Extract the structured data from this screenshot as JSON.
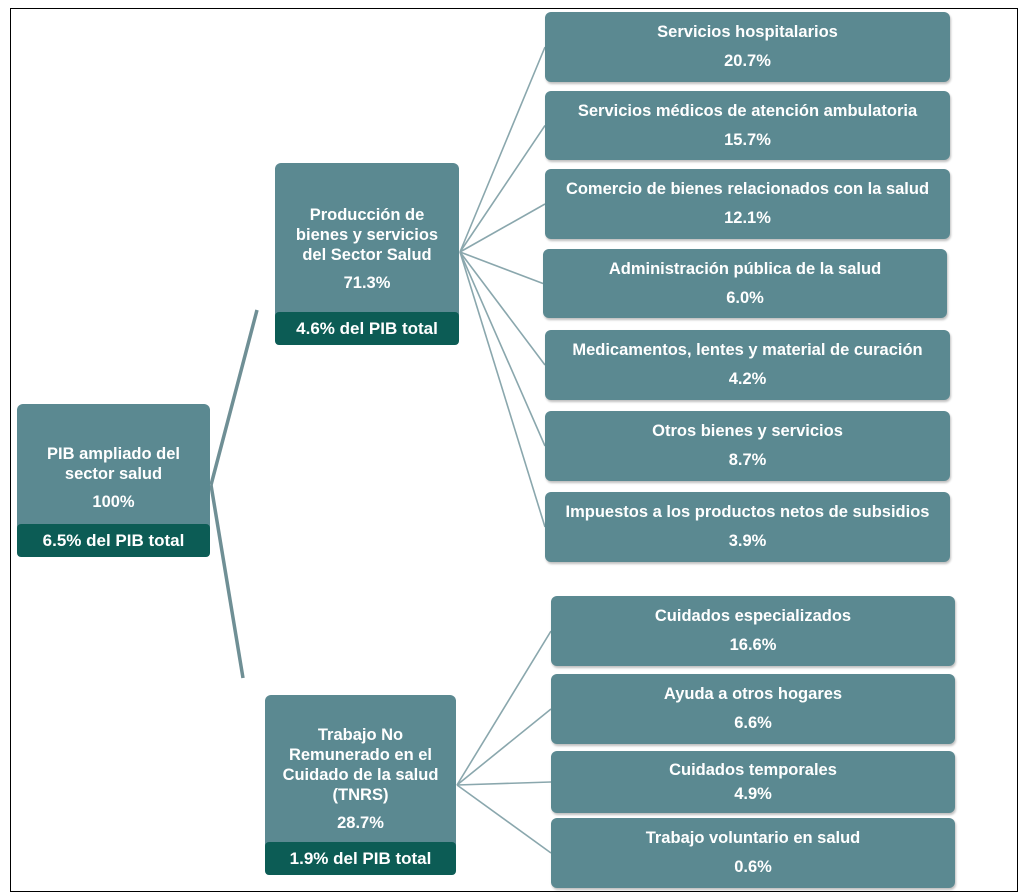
{
  "root": {
    "label": "PIB ampliado del sector salud",
    "share": "100%",
    "gdp": "6.5% del PIB total"
  },
  "branches": [
    {
      "label": "Producción de bienes y servicios del Sector Salud",
      "share": "71.3%",
      "gdp": "4.6% del PIB total",
      "items": [
        {
          "label": "Servicios hospitalarios",
          "share": "20.7%"
        },
        {
          "label": "Servicios médicos de atención ambulatoria",
          "share": "15.7%"
        },
        {
          "label": "Comercio de bienes relacionados con la salud",
          "share": "12.1%"
        },
        {
          "label": "Administración pública de la salud",
          "share": "6.0%"
        },
        {
          "label": "Medicamentos, lentes y material de curación",
          "share": "4.2%"
        },
        {
          "label": "Otros bienes y servicios",
          "share": "8.7%"
        },
        {
          "label": "Impuestos a los productos netos de subsidios",
          "share": "3.9%"
        }
      ]
    },
    {
      "label": "Trabajo No Remunerado en el Cuidado de la salud (TNRS)",
      "share": "28.7%",
      "gdp": "1.9% del PIB total",
      "items": [
        {
          "label": "Cuidados especializados",
          "share": "16.6%"
        },
        {
          "label": "Ayuda a otros hogares",
          "share": "6.6%"
        },
        {
          "label": "Cuidados temporales",
          "share": "4.9%"
        },
        {
          "label": "Trabajo voluntario en salud",
          "share": "0.6%"
        }
      ]
    }
  ]
}
